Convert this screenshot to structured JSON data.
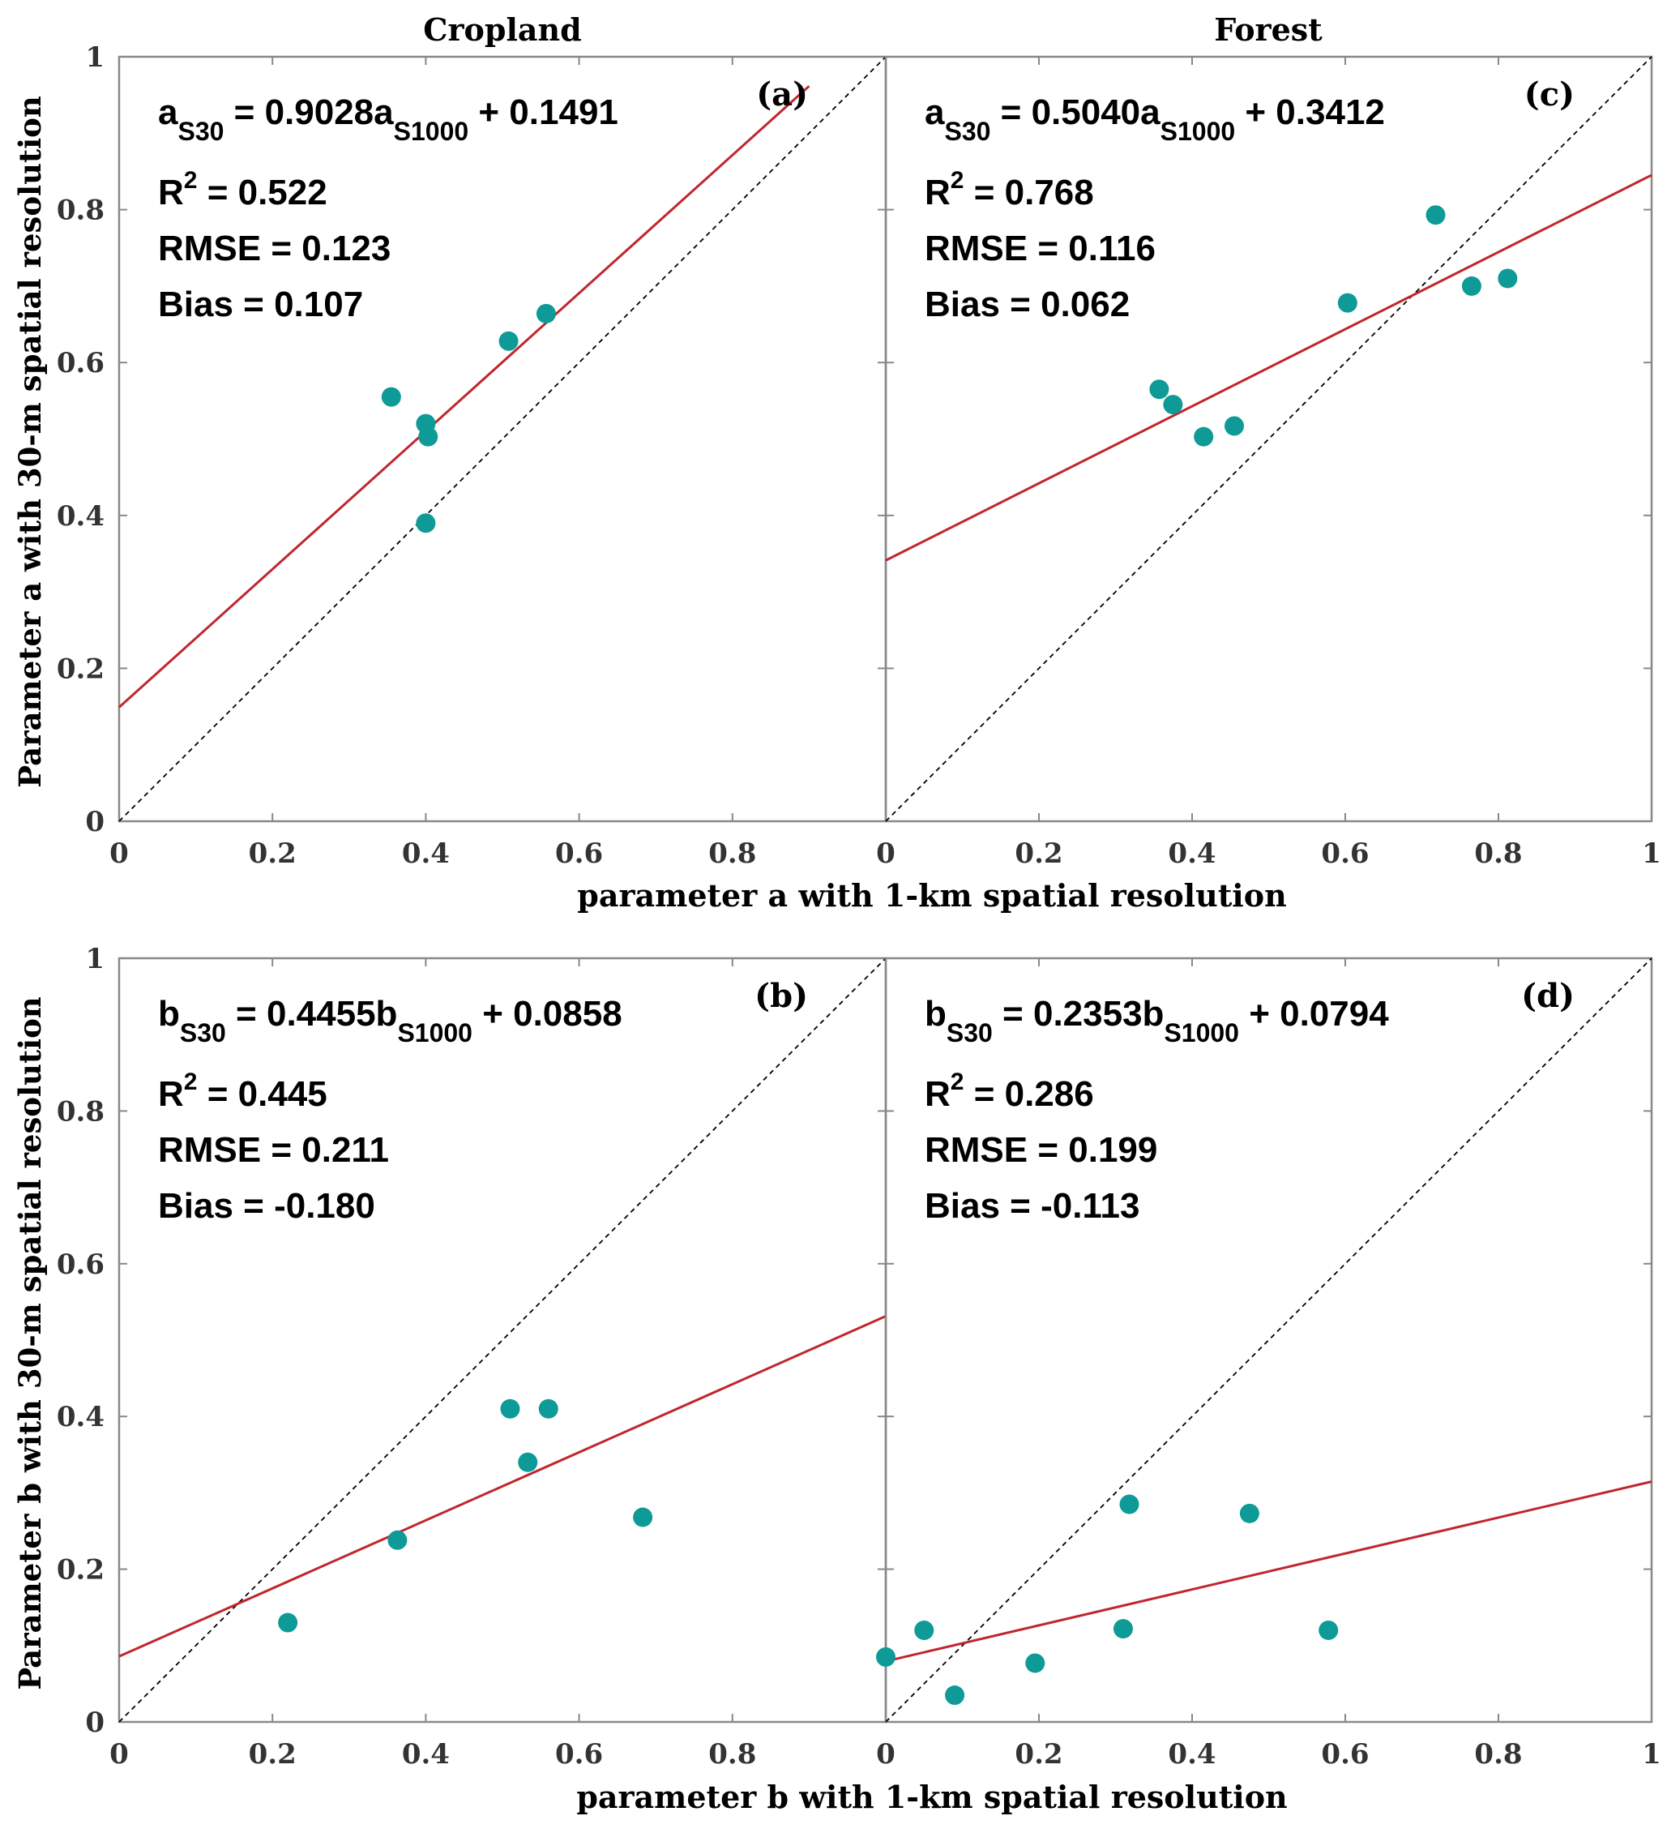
{
  "figure": {
    "column_titles": [
      "Cropland",
      "Forest"
    ],
    "ylabel_top": "Parameter a with 30-m spatial resolution",
    "ylabel_bottom": "Parameter b with 30-m spatial resolution",
    "xlabel_top": "parameter a with 1-km spatial resolution",
    "xlabel_bottom": "parameter b with 1-km spatial resolution"
  },
  "colors": {
    "points": "#0e9a96",
    "fit_line": "#c0262d",
    "one_to_one": "#000000",
    "axes": "#888888"
  },
  "chart_data": [
    {
      "type": "scatter",
      "panel_label": "(a)",
      "title": "Cropland",
      "xlim": [
        0,
        1
      ],
      "ylim": [
        0,
        1
      ],
      "xticks": [
        "0",
        "0.2",
        "0.4",
        "0.6",
        "0.8"
      ],
      "yticks": [
        "0",
        "0.2",
        "0.4",
        "0.6",
        "0.8",
        "1"
      ],
      "points": [
        [
          0.355,
          0.555
        ],
        [
          0.4,
          0.52
        ],
        [
          0.403,
          0.503
        ],
        [
          0.4,
          0.39
        ],
        [
          0.508,
          0.628
        ],
        [
          0.557,
          0.664
        ]
      ],
      "fit": {
        "slope": 0.9028,
        "intercept": 0.1491,
        "x_end": 0.9
      },
      "equation": {
        "lhs": "a",
        "lhs_sub": "S30",
        "eq": " = 0.9028a",
        "x_sub": "S1000",
        "tail": " + 0.1491"
      },
      "stats": {
        "r2_value": " = 0.522",
        "rmse": "RMSE = 0.123",
        "bias": "Bias = 0.107"
      }
    },
    {
      "type": "scatter",
      "panel_label": "(c)",
      "title": "Forest",
      "xlim": [
        0,
        1
      ],
      "ylim": [
        0,
        1
      ],
      "xticks": [
        "0",
        "0.2",
        "0.4",
        "0.6",
        "0.8",
        "1"
      ],
      "yticks": [],
      "points": [
        [
          0.357,
          0.565
        ],
        [
          0.375,
          0.545
        ],
        [
          0.415,
          0.503
        ],
        [
          0.455,
          0.517
        ],
        [
          0.603,
          0.678
        ],
        [
          0.718,
          0.793
        ],
        [
          0.765,
          0.7
        ],
        [
          0.812,
          0.71
        ]
      ],
      "fit": {
        "slope": 0.504,
        "intercept": 0.3412,
        "x_end": 1.0
      },
      "equation": {
        "lhs": "a",
        "lhs_sub": "S30",
        "eq": " = 0.5040a",
        "x_sub": "S1000",
        "tail": " + 0.3412"
      },
      "stats": {
        "r2_value": " = 0.768",
        "rmse": "RMSE = 0.116",
        "bias": "Bias = 0.062"
      }
    },
    {
      "type": "scatter",
      "panel_label": "(b)",
      "title": "",
      "xlim": [
        0,
        1
      ],
      "ylim": [
        0,
        1
      ],
      "xticks": [
        "0",
        "0.2",
        "0.4",
        "0.6",
        "0.8"
      ],
      "yticks": [
        "0",
        "0.2",
        "0.4",
        "0.6",
        "0.8",
        "1"
      ],
      "points": [
        [
          0.22,
          0.13
        ],
        [
          0.363,
          0.238
        ],
        [
          0.51,
          0.41
        ],
        [
          0.56,
          0.41
        ],
        [
          0.533,
          0.34
        ],
        [
          0.683,
          0.268
        ]
      ],
      "fit": {
        "slope": 0.4455,
        "intercept": 0.0858,
        "x_end": 1.0
      },
      "equation": {
        "lhs": "b",
        "lhs_sub": "S30",
        "eq": " = 0.4455b",
        "x_sub": "S1000",
        "tail": " + 0.0858"
      },
      "stats": {
        "r2_value": " = 0.445",
        "rmse": "RMSE = 0.211",
        "bias": "Bias = -0.180"
      }
    },
    {
      "type": "scatter",
      "panel_label": "(d)",
      "title": "",
      "xlim": [
        0,
        1
      ],
      "ylim": [
        0,
        1
      ],
      "xticks": [
        "0",
        "0.2",
        "0.4",
        "0.6",
        "0.8",
        "1"
      ],
      "yticks": [],
      "points": [
        [
          0.0,
          0.085
        ],
        [
          0.05,
          0.12
        ],
        [
          0.09,
          0.035
        ],
        [
          0.195,
          0.077
        ],
        [
          0.31,
          0.122
        ],
        [
          0.318,
          0.285
        ],
        [
          0.475,
          0.273
        ],
        [
          0.578,
          0.12
        ]
      ],
      "fit": {
        "slope": 0.2353,
        "intercept": 0.0794,
        "x_end": 1.0
      },
      "equation": {
        "lhs": "b",
        "lhs_sub": "S30",
        "eq": " = 0.2353b",
        "x_sub": "S1000",
        "tail": " + 0.0794"
      },
      "stats": {
        "r2_value": " = 0.286",
        "rmse": "RMSE = 0.199",
        "bias": "Bias = -0.113"
      }
    }
  ]
}
